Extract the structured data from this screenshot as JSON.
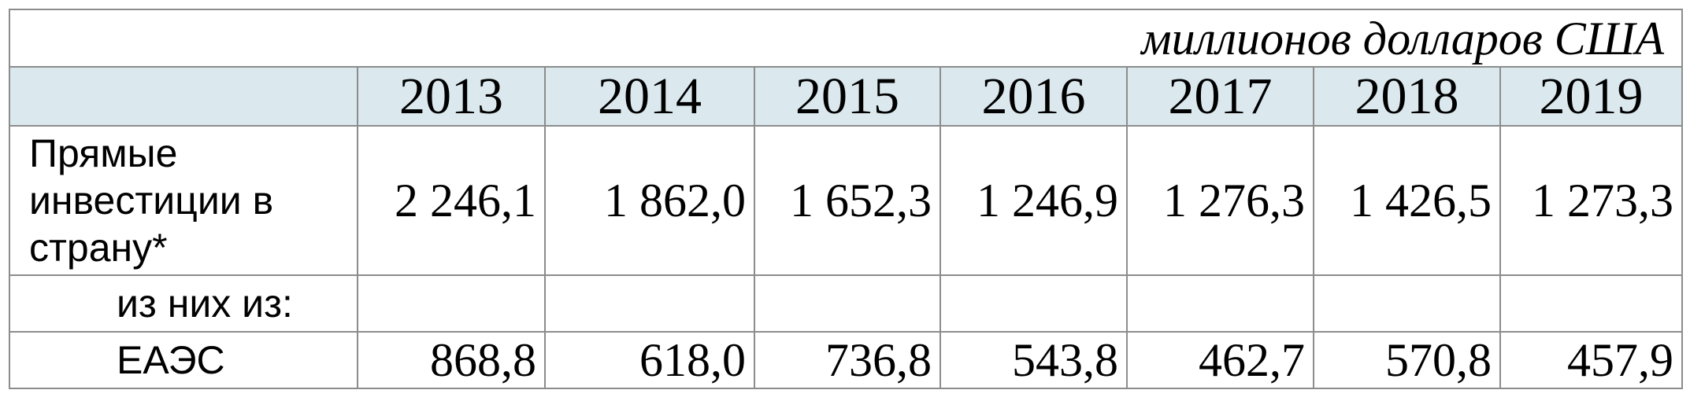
{
  "table": {
    "unit_note": "миллионов долларов США",
    "years": [
      "2013",
      "2014",
      "2015",
      "2016",
      "2017",
      "2018",
      "2019"
    ],
    "rows": [
      {
        "label": "Прямые инвестиции в страну*",
        "values": [
          "2 246,1",
          "1 862,0",
          "1 652,3",
          "1 246,9",
          "1 276,3",
          "1 426,5",
          "1 273,3"
        ]
      },
      {
        "label": "из них из:"
      },
      {
        "label": "ЕАЭС",
        "values": [
          "868,8",
          "618,0",
          "736,8",
          "543,8",
          "462,7",
          "570,8",
          "457,9"
        ]
      }
    ]
  }
}
